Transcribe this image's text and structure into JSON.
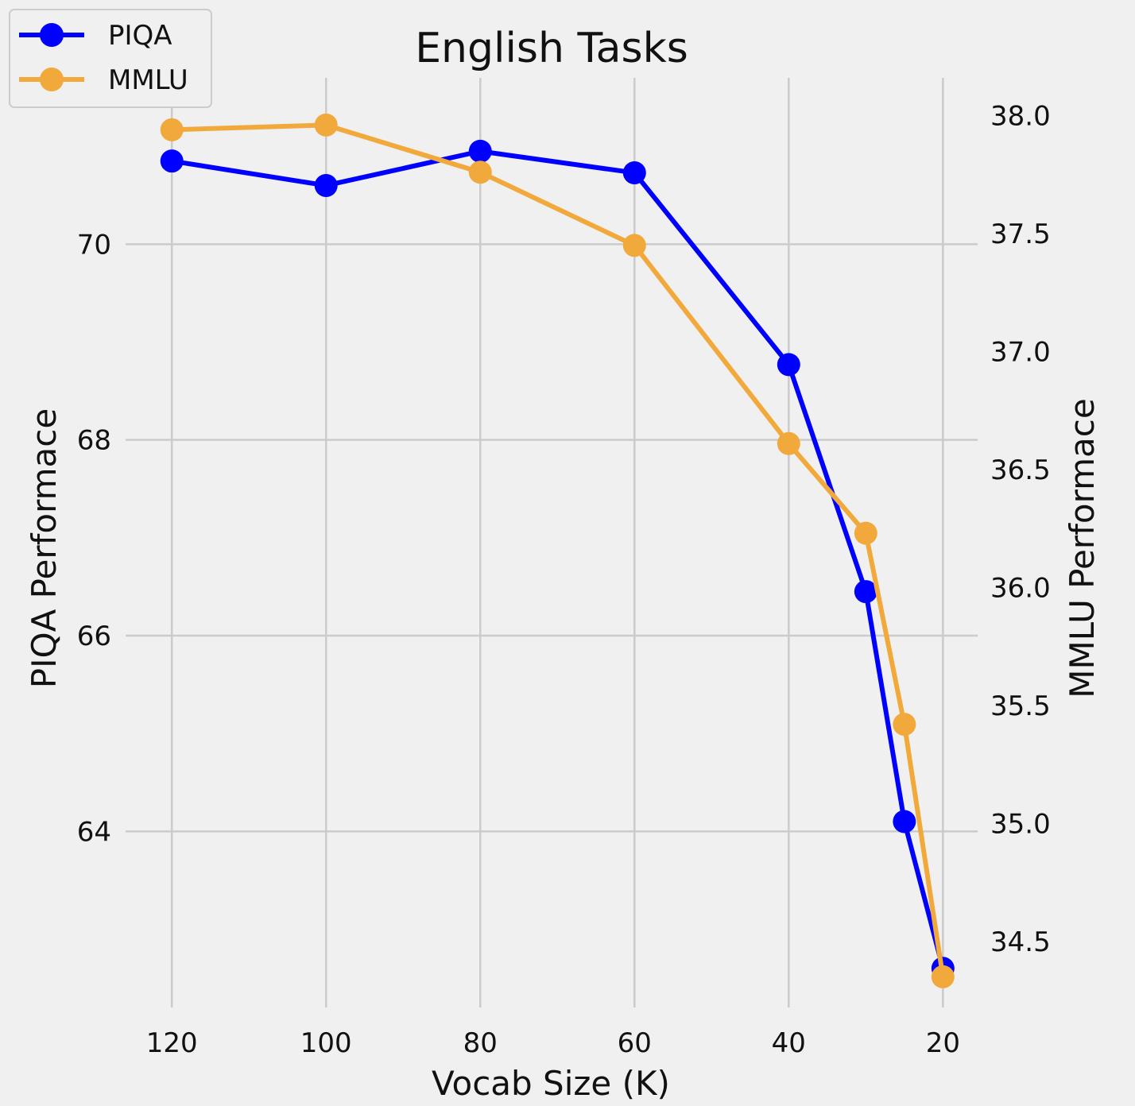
{
  "chart_data": {
    "type": "line",
    "title": "English Tasks",
    "xlabel": "Vocab Size (K)",
    "ylabel_left": "PIQA Performace",
    "ylabel_right": "MMLU Performace",
    "x": [
      120,
      100,
      80,
      60,
      40,
      30,
      25,
      20
    ],
    "x_ticks": [
      120,
      100,
      80,
      60,
      40,
      20
    ],
    "xlim": [
      126,
      15.5
    ],
    "y_left_ticks": [
      64,
      66,
      68,
      70
    ],
    "y_left_range": [
      62.2,
      71.7
    ],
    "y_right_ticks": [
      "34.5",
      "35.0",
      "35.5",
      "36.0",
      "36.5",
      "37.0",
      "37.5",
      "38.0"
    ],
    "y_right_range": [
      34.22,
      38.16
    ],
    "grid": true,
    "legend_position": "top-left",
    "series": [
      {
        "name": "PIQA",
        "axis": "left",
        "color": "#0000ff",
        "values": [
          70.85,
          70.6,
          70.95,
          70.73,
          68.77,
          66.45,
          64.1,
          62.6
        ]
      },
      {
        "name": "MMLU",
        "axis": "right",
        "color": "#f2a93b",
        "values": [
          37.94,
          37.96,
          37.76,
          37.45,
          36.61,
          36.23,
          35.42,
          34.35
        ]
      }
    ]
  }
}
